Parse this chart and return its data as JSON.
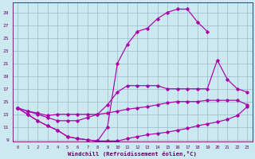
{
  "xlabel": "Windchill (Refroidissement éolien,°C)",
  "x_values": [
    0,
    1,
    2,
    3,
    4,
    5,
    6,
    7,
    8,
    9,
    10,
    11,
    12,
    13,
    14,
    15,
    16,
    17,
    18,
    19,
    20,
    21,
    22,
    23
  ],
  "line_bottom": [
    14,
    13,
    12,
    11.2,
    10.5,
    9.5,
    9.2,
    9.0,
    8.8,
    8.8,
    8.8,
    9.2,
    9.5,
    9.8,
    10.0,
    10.2,
    10.5,
    10.8,
    11.2,
    11.5,
    11.8,
    12.2,
    12.8,
    14.2
  ],
  "line_top": [
    14,
    13,
    12,
    11.2,
    10.5,
    9.5,
    9.2,
    9.0,
    8.8,
    11.0,
    21.0,
    24.0,
    26.0,
    26.5,
    28.0,
    29.0,
    29.5,
    29.5,
    27.5,
    26.0,
    null,
    null,
    null,
    null
  ],
  "line_mid_upper": [
    14,
    13.5,
    13.0,
    12.5,
    12.0,
    12.0,
    12.0,
    12.5,
    13.0,
    14.5,
    16.5,
    17.5,
    17.5,
    17.5,
    17.5,
    17.0,
    17.0,
    17.0,
    17.0,
    17.0,
    21.5,
    18.5,
    17.0,
    16.5
  ],
  "line_flat": [
    14,
    13.5,
    13.2,
    12.8,
    13.0,
    13.0,
    13.0,
    13.0,
    13.0,
    13.2,
    13.5,
    13.8,
    14.0,
    14.2,
    14.5,
    14.8,
    15.0,
    15.0,
    15.0,
    15.2,
    15.2,
    15.2,
    15.2,
    14.5
  ],
  "ylim_min": 9,
  "ylim_max": 30,
  "xlim_min": 0,
  "xlim_max": 23,
  "yticks": [
    9,
    11,
    13,
    15,
    17,
    19,
    21,
    23,
    25,
    27,
    29
  ],
  "xticks": [
    0,
    1,
    2,
    3,
    4,
    5,
    6,
    7,
    8,
    9,
    10,
    11,
    12,
    13,
    14,
    15,
    16,
    17,
    18,
    19,
    20,
    21,
    22,
    23
  ],
  "line_color": "#aa00aa",
  "bg_color": "#cce8f0",
  "grid_color": "#99bbcc",
  "text_color": "#660066"
}
